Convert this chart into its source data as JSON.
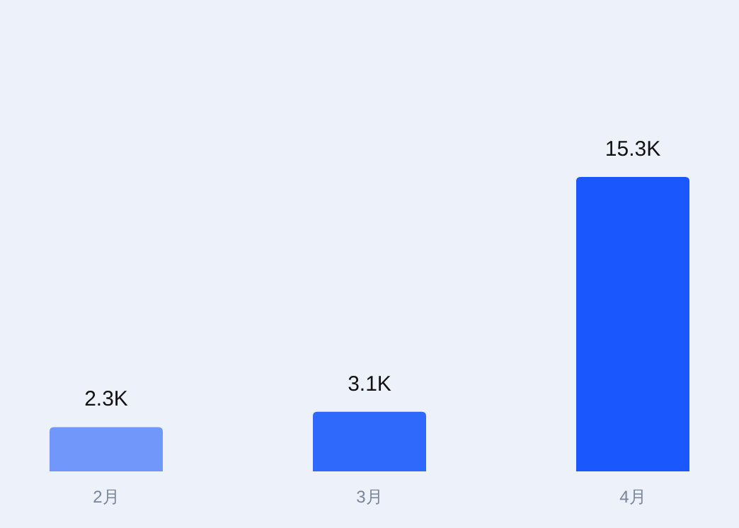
{
  "chart_data": {
    "type": "bar",
    "categories": [
      "2月",
      "3月",
      "4月"
    ],
    "values": [
      2300,
      3100,
      15300
    ],
    "value_labels": [
      "2.3K",
      "3.1K",
      "15.3K"
    ],
    "colors": [
      "#7197fb",
      "#2f69fb",
      "#1a57fc"
    ]
  }
}
